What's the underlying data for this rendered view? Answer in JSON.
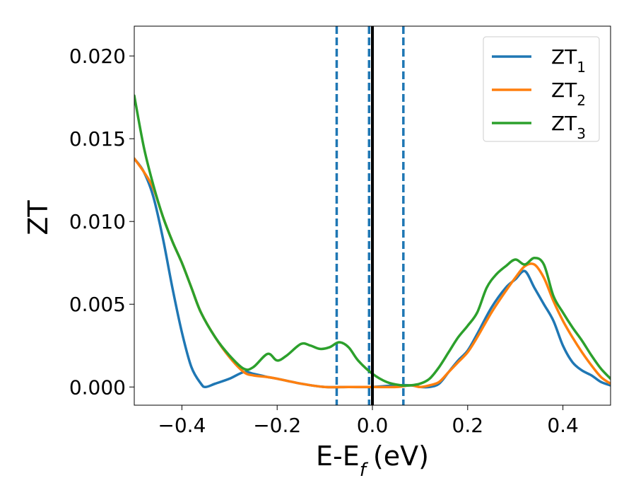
{
  "chart_data": {
    "type": "line",
    "title": "",
    "xlabel_main": "E-E",
    "xlabel_sub": "f",
    "xlabel_unit": "(eV)",
    "ylabel": "ZT",
    "xlim": [
      -0.5,
      0.5
    ],
    "ylim": [
      -0.0011,
      0.0218
    ],
    "xticks": [
      -0.4,
      -0.2,
      0.0,
      0.2,
      0.4
    ],
    "xtick_labels": [
      "−0.4",
      "−0.2",
      "0.0",
      "0.2",
      "0.4"
    ],
    "yticks": [
      0.0,
      0.005,
      0.01,
      0.015,
      0.02
    ],
    "ytick_labels": [
      "0.000",
      "0.005",
      "0.010",
      "0.015",
      "0.020"
    ],
    "grid": false,
    "legend_position": "top-right",
    "vlines": [
      {
        "x": -0.075,
        "style": "dashed",
        "color": "#1f77b4"
      },
      {
        "x": -0.007,
        "style": "dashed",
        "color": "#1f77b4"
      },
      {
        "x": 0.065,
        "style": "dashed",
        "color": "#1f77b4"
      },
      {
        "x": 0.0,
        "style": "solid",
        "color": "#000000"
      }
    ],
    "series": [
      {
        "name": "ZT",
        "sub": "1",
        "color": "#1f77b4",
        "x": [
          -0.5,
          -0.48,
          -0.46,
          -0.44,
          -0.42,
          -0.4,
          -0.38,
          -0.36,
          -0.35,
          -0.33,
          -0.3,
          -0.27,
          -0.25,
          -0.22,
          -0.2,
          -0.15,
          -0.1,
          -0.05,
          0.0,
          0.05,
          0.08,
          0.1,
          0.12,
          0.14,
          0.16,
          0.18,
          0.2,
          0.22,
          0.25,
          0.28,
          0.3,
          0.32,
          0.34,
          0.36,
          0.38,
          0.4,
          0.42,
          0.44,
          0.46,
          0.48,
          0.5
        ],
        "y": [
          0.0138,
          0.013,
          0.0115,
          0.009,
          0.006,
          0.0033,
          0.0012,
          0.0002,
          0.0,
          0.0002,
          0.0005,
          0.0009,
          0.0008,
          0.0006,
          0.0005,
          0.0002,
          0.0,
          0.0,
          0.0,
          0.0001,
          0.0001,
          0.0,
          0.0,
          0.0002,
          0.0009,
          0.0016,
          0.0022,
          0.0032,
          0.0048,
          0.006,
          0.0065,
          0.007,
          0.006,
          0.005,
          0.004,
          0.0025,
          0.0015,
          0.001,
          0.0007,
          0.0003,
          0.0001
        ]
      },
      {
        "name": "ZT",
        "sub": "2",
        "color": "#ff7f0e",
        "x": [
          -0.5,
          -0.48,
          -0.46,
          -0.44,
          -0.42,
          -0.4,
          -0.38,
          -0.36,
          -0.33,
          -0.3,
          -0.27,
          -0.25,
          -0.22,
          -0.2,
          -0.15,
          -0.1,
          -0.05,
          0.0,
          0.05,
          0.08,
          0.1,
          0.12,
          0.14,
          0.16,
          0.18,
          0.2,
          0.22,
          0.25,
          0.28,
          0.3,
          0.32,
          0.34,
          0.36,
          0.38,
          0.4,
          0.42,
          0.44,
          0.46,
          0.48,
          0.5
        ],
        "y": [
          0.0138,
          0.013,
          0.012,
          0.0103,
          0.0088,
          0.0075,
          0.006,
          0.0045,
          0.003,
          0.0018,
          0.0009,
          0.0007,
          0.0006,
          0.0005,
          0.0002,
          0.0,
          0.0,
          0.0,
          0.0,
          0.0001,
          0.0,
          0.0001,
          0.0003,
          0.0009,
          0.0015,
          0.0021,
          0.003,
          0.0045,
          0.0058,
          0.0066,
          0.0073,
          0.0074,
          0.0066,
          0.0052,
          0.004,
          0.003,
          0.0021,
          0.0013,
          0.0006,
          0.0002
        ]
      },
      {
        "name": "ZT",
        "sub": "3",
        "color": "#2ca02c",
        "x": [
          -0.5,
          -0.48,
          -0.46,
          -0.44,
          -0.42,
          -0.4,
          -0.38,
          -0.36,
          -0.33,
          -0.3,
          -0.27,
          -0.25,
          -0.22,
          -0.2,
          -0.18,
          -0.15,
          -0.13,
          -0.11,
          -0.09,
          -0.07,
          -0.05,
          -0.03,
          0.0,
          0.03,
          0.06,
          0.08,
          0.1,
          0.12,
          0.14,
          0.16,
          0.18,
          0.2,
          0.22,
          0.24,
          0.26,
          0.28,
          0.3,
          0.32,
          0.34,
          0.36,
          0.38,
          0.4,
          0.42,
          0.44,
          0.46,
          0.48,
          0.5
        ],
        "y": [
          0.0176,
          0.0145,
          0.0122,
          0.0103,
          0.0088,
          0.0075,
          0.006,
          0.0045,
          0.003,
          0.0019,
          0.0011,
          0.0012,
          0.002,
          0.0016,
          0.0019,
          0.0026,
          0.0025,
          0.0023,
          0.0024,
          0.0027,
          0.0024,
          0.0016,
          0.0008,
          0.0003,
          0.0001,
          0.0001,
          0.0002,
          0.0005,
          0.0012,
          0.0021,
          0.003,
          0.0037,
          0.0045,
          0.006,
          0.0068,
          0.0073,
          0.0077,
          0.0074,
          0.0078,
          0.0074,
          0.0055,
          0.0045,
          0.0036,
          0.0028,
          0.0019,
          0.0011,
          0.0005
        ]
      }
    ]
  }
}
